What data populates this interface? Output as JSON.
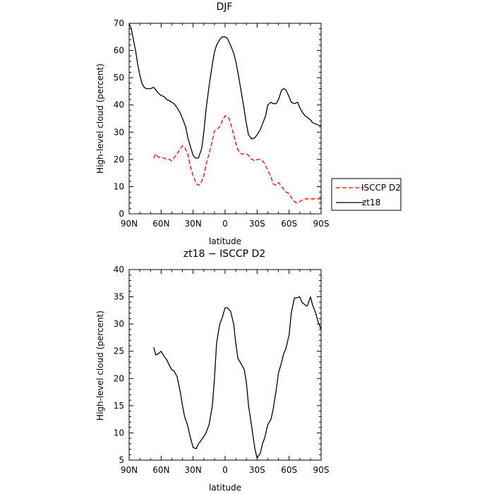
{
  "chart_data": [
    {
      "type": "line",
      "title": "DJF",
      "xlabel": "latitude",
      "ylabel": "High-level cloud (percent)",
      "xlim": [
        -90,
        90
      ],
      "ylim": [
        0,
        70
      ],
      "xticks": [
        -90,
        -60,
        -30,
        0,
        30,
        60,
        90
      ],
      "xtick_labels": [
        "90N",
        "60N",
        "30N",
        "0",
        "30S",
        "60S",
        "90S"
      ],
      "yticks": [
        0,
        10,
        20,
        30,
        40,
        50,
        60,
        70
      ],
      "ytick_labels": [
        "0",
        "10",
        "20",
        "30",
        "40",
        "50",
        "60",
        "70"
      ],
      "legend": {
        "placement": "right-outside",
        "framed": true
      },
      "series": [
        {
          "name": "ISCCP D2",
          "color": "#ff0000",
          "dash": "dashed",
          "x": [
            -67,
            -65,
            -63,
            -60,
            -57,
            -55,
            -52,
            -50,
            -48,
            -45,
            -42,
            -40,
            -38,
            -35,
            -33,
            -30,
            -27,
            -25,
            -23,
            -20,
            -18,
            -15,
            -12,
            -10,
            -8,
            -5,
            -3,
            0,
            3,
            5,
            8,
            10,
            12,
            15,
            18,
            20,
            22,
            25,
            28,
            30,
            33,
            35,
            37,
            40,
            43,
            45,
            48,
            50,
            53,
            55,
            57,
            60,
            62,
            65,
            67,
            70,
            72,
            75,
            77,
            80,
            82,
            85,
            87,
            90
          ],
          "y": [
            20.5,
            22,
            21,
            20.5,
            20.5,
            20,
            20,
            19.5,
            20.5,
            22,
            24,
            25,
            24.5,
            22,
            18,
            14,
            11,
            10.5,
            11,
            14,
            18,
            22,
            27,
            30.5,
            31,
            32,
            34,
            36,
            35.5,
            33.5,
            29,
            26,
            23.5,
            22,
            22,
            22,
            21.5,
            20,
            19.5,
            20,
            20,
            19.5,
            18.5,
            16,
            13.5,
            11,
            10.5,
            11.5,
            10,
            9,
            8,
            7.5,
            6,
            4.5,
            4,
            4.5,
            5,
            5.5,
            5.5,
            5.5,
            5.5,
            5.5,
            5.5,
            5.5
          ]
        },
        {
          "name": "zt18",
          "color": "#000000",
          "dash": "solid",
          "x": [
            -90,
            -88,
            -86,
            -84,
            -82,
            -80,
            -78,
            -76,
            -74,
            -72,
            -70,
            -67,
            -65,
            -63,
            -60,
            -57,
            -55,
            -52,
            -50,
            -48,
            -45,
            -42,
            -40,
            -37,
            -35,
            -32,
            -30,
            -28,
            -25,
            -22,
            -20,
            -18,
            -15,
            -12,
            -10,
            -8,
            -5,
            -3,
            0,
            2,
            5,
            8,
            10,
            12,
            15,
            18,
            20,
            22,
            25,
            28,
            30,
            33,
            35,
            38,
            40,
            43,
            45,
            48,
            50,
            53,
            55,
            57,
            60,
            62,
            65,
            68,
            70,
            73,
            75,
            77,
            80,
            82,
            85,
            88,
            90
          ],
          "y": [
            70,
            68,
            64,
            60,
            55,
            51,
            48,
            46.5,
            46,
            46,
            46,
            46.5,
            45.5,
            44.5,
            43.5,
            43,
            42,
            41.5,
            41,
            40.5,
            39,
            37,
            35,
            32,
            28,
            24,
            21.5,
            20.5,
            20.5,
            24,
            30,
            38,
            47,
            55,
            59.5,
            62,
            64,
            65,
            65,
            64.5,
            62,
            59,
            56,
            52,
            45,
            38,
            33,
            29,
            27.5,
            28,
            29,
            31,
            33,
            36,
            40,
            41,
            40.5,
            40.5,
            42,
            45.5,
            46,
            45.5,
            43,
            41,
            40.5,
            41,
            39,
            37,
            36,
            35.5,
            34.5,
            33.5,
            33,
            32.5,
            32.5
          ]
        }
      ]
    },
    {
      "type": "line",
      "title": "zt18 − ISCCP D2",
      "xlabel": "latitude",
      "ylabel": "High-level cloud (percent)",
      "xlim": [
        -90,
        90
      ],
      "ylim": [
        5,
        40
      ],
      "xticks": [
        -90,
        -60,
        -30,
        0,
        30,
        60,
        90
      ],
      "xtick_labels": [
        "90N",
        "60N",
        "30N",
        "0",
        "30S",
        "60S",
        "90S"
      ],
      "yticks": [
        5,
        10,
        15,
        20,
        25,
        30,
        35,
        40
      ],
      "ytick_labels": [
        "5",
        "10",
        "15",
        "20",
        "25",
        "30",
        "35",
        "40"
      ],
      "series": [
        {
          "color": "#000000",
          "dash": "solid",
          "x": [
            -67,
            -65,
            -63,
            -60,
            -57,
            -55,
            -52,
            -50,
            -48,
            -45,
            -42,
            -40,
            -38,
            -35,
            -33,
            -30,
            -27,
            -25,
            -23,
            -20,
            -18,
            -15,
            -12,
            -10,
            -8,
            -5,
            -3,
            0,
            2,
            5,
            8,
            10,
            12,
            15,
            18,
            20,
            22,
            25,
            28,
            30,
            33,
            35,
            37,
            40,
            43,
            45,
            48,
            50,
            53,
            55,
            57,
            60,
            62,
            65,
            67,
            70,
            72,
            75,
            77,
            80,
            82,
            85,
            87,
            90
          ],
          "y": [
            25.7,
            24.3,
            24.5,
            25,
            24,
            23.5,
            22.3,
            21.6,
            21.4,
            20.3,
            17.5,
            15,
            13,
            11.3,
            9.5,
            7.3,
            7.1,
            8,
            8.5,
            9.3,
            10,
            11.5,
            15,
            20,
            26.5,
            30,
            31,
            33,
            33,
            32.4,
            30,
            26.5,
            23.7,
            22.7,
            21.6,
            19.2,
            15,
            11,
            7,
            5.4,
            6.3,
            8,
            9,
            11.5,
            12.5,
            14.3,
            18,
            21,
            23,
            24.6,
            25.5,
            28,
            32,
            34.8,
            34.8,
            35,
            34,
            33.5,
            33.3,
            35,
            33.5,
            32,
            30.5,
            29
          ]
        }
      ]
    }
  ]
}
